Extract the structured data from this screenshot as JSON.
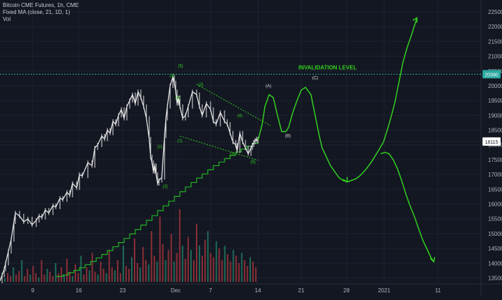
{
  "legend": {
    "symbol_line": "Bitcoin CME Futures, 1h, CME",
    "ma_line": "Fixed MA (close, 21, 1D, 1)",
    "vol_line": "Vol"
  },
  "annotations": {
    "invalidation_label": "INVALIDATION LEVEL"
  },
  "price_tags": {
    "invalidation": "20390",
    "last": "18115"
  },
  "colors": {
    "background": "#131722",
    "candles": "#e6e6e6",
    "wave_green": "#32d11f",
    "ma_green": "#22b422",
    "invalidation_line": "#2aa8a0",
    "volume_red": "#8c2f36",
    "volume_green": "#1f6b58",
    "axis_text": "#b2b5be",
    "grid": "#1e2230"
  },
  "chart_data": {
    "type": "line",
    "y_axis": {
      "range": [
        13300,
        22900
      ],
      "ticks": [
        "22500",
        "22000",
        "21500",
        "21000",
        "20500",
        "20000",
        "19500",
        "19000",
        "18500",
        "18000",
        "17500",
        "17000",
        "16500",
        "16000",
        "15500",
        "15000",
        "14500",
        "14000",
        "13500"
      ]
    },
    "x_axis": {
      "ticks": [
        "9",
        "16",
        "23",
        "Dec",
        "7",
        "14",
        "21",
        "28",
        "2021",
        "11"
      ]
    },
    "price_series": {
      "name": "",
      "x": [
        0,
        3,
        6,
        8,
        12,
        16,
        20,
        22,
        28,
        34,
        40,
        46,
        52,
        56,
        60,
        65,
        70,
        76,
        80,
        86,
        90,
        96,
        100,
        104,
        110,
        114,
        118,
        126,
        132,
        136,
        140,
        146,
        150,
        154,
        158,
        162,
        166,
        170,
        174,
        178,
        182,
        186,
        190,
        194,
        198,
        202,
        206,
        210,
        214,
        216,
        218,
        220,
        222,
        224,
        226,
        228,
        232,
        236,
        238,
        240,
        244,
        248,
        250,
        252,
        254,
        256,
        258,
        262,
        266,
        270,
        276,
        282,
        286,
        290,
        296,
        302,
        306,
        310,
        316,
        322,
        326,
        330,
        334,
        338,
        340,
        344,
        348,
        352,
        356,
        360,
        362,
        364,
        366,
        368,
        370
      ],
      "y": [
        13400,
        13600,
        13800,
        14000,
        14400,
        14800,
        15400,
        15700,
        15600,
        15400,
        15500,
        15300,
        15450,
        15600,
        15550,
        15800,
        15700,
        15950,
        15900,
        16200,
        16150,
        16400,
        16300,
        16700,
        16550,
        17000,
        16950,
        17400,
        17300,
        17900,
        18000,
        18300,
        18200,
        18500,
        18400,
        18800,
        18700,
        19000,
        19200,
        18900,
        19300,
        19500,
        19700,
        19400,
        19800,
        19600,
        19300,
        18900,
        18200,
        17600,
        17400,
        17100,
        17300,
        17000,
        16700,
        16800,
        16900,
        18300,
        18900,
        19300,
        20000,
        20300,
        20100,
        19800,
        19400,
        19600,
        19300,
        18900,
        19000,
        19300,
        19800,
        19700,
        19300,
        19000,
        19400,
        19200,
        18800,
        18700,
        19100,
        18800,
        18700,
        18400,
        18100,
        18000,
        17800,
        18400,
        18100,
        17900,
        17700,
        17900,
        18000,
        18100,
        18150,
        18200,
        18115
      ]
    },
    "volume_levels": [
      0.05,
      0.12,
      0.08,
      0.2,
      0.1,
      0.15,
      0.3,
      0.08,
      0.18,
      0.1,
      0.22,
      0.12,
      0.06,
      0.3,
      0.1,
      0.18,
      0.14,
      0.08,
      0.26,
      0.12,
      0.2,
      0.1,
      0.32,
      0.14,
      0.08,
      0.24,
      0.12,
      0.36,
      0.1,
      0.2,
      0.16,
      0.4,
      0.14,
      0.1,
      0.28,
      0.18,
      0.12,
      0.44,
      0.2,
      0.16,
      0.3,
      0.12,
      0.5,
      0.22,
      0.18,
      0.34,
      0.6,
      0.26,
      0.2,
      0.48,
      0.3,
      0.24,
      0.7,
      0.36,
      0.28,
      0.9,
      0.52,
      0.3,
      0.44,
      0.66,
      0.28,
      0.4,
      1.0,
      0.5,
      0.32,
      0.62,
      0.44,
      0.3,
      0.8,
      0.5,
      0.36,
      0.58,
      0.7,
      0.4,
      0.34,
      0.56,
      0.46,
      0.3,
      0.5,
      0.38,
      0.28,
      0.44,
      0.36,
      0.26,
      0.4,
      0.3,
      0.22,
      0.34,
      0.28,
      0.2
    ],
    "moving_average_steps": {
      "name": "Fixed MA (close, 21, 1D, 1)",
      "x": [
        80,
        90,
        98,
        106,
        114,
        122,
        130,
        138,
        146,
        154,
        162,
        170,
        178,
        186,
        194,
        202,
        210,
        218,
        226,
        234,
        242,
        250,
        258,
        266,
        274,
        282,
        290,
        298,
        306,
        314,
        322,
        330,
        338,
        346,
        354,
        362,
        370
      ],
      "y": [
        13550,
        13600,
        13680,
        13760,
        13850,
        13950,
        14060,
        14180,
        14300,
        14430,
        14560,
        14700,
        14840,
        14990,
        15140,
        15290,
        15450,
        15610,
        15780,
        15940,
        16100,
        16260,
        16420,
        16580,
        16730,
        16880,
        17020,
        17160,
        17300,
        17420,
        17540,
        17650,
        17760,
        17860,
        17960,
        18050,
        18115
      ]
    },
    "invalidation_level": 20390,
    "projected_path": {
      "x": [
        370,
        376,
        380,
        386,
        392,
        398,
        404,
        410,
        414,
        420,
        426,
        432,
        438,
        446,
        452,
        458,
        462,
        468,
        474,
        480,
        486,
        492,
        498,
        504,
        510,
        516,
        524,
        532,
        540,
        550,
        558,
        566,
        572,
        578,
        584,
        590,
        594,
        598
      ],
      "y": [
        18150,
        18700,
        19300,
        19700,
        19600,
        19000,
        18450,
        18450,
        18600,
        19100,
        19500,
        19850,
        19950,
        19700,
        19000,
        18300,
        17900,
        17600,
        17300,
        17100,
        16900,
        16800,
        16750,
        16800,
        16850,
        16950,
        17150,
        17400,
        17700,
        18100,
        18700,
        19400,
        20100,
        20800,
        21300,
        21700,
        22000,
        22300
      ]
    },
    "alternate_path": {
      "x": [
        546,
        552,
        558,
        564,
        570,
        576,
        582,
        588,
        594,
        600,
        606,
        612,
        618,
        622
      ],
      "y": [
        17700,
        17750,
        17700,
        17500,
        17200,
        16800,
        16350,
        15950,
        15600,
        15200,
        14800,
        14500,
        14200,
        14050
      ]
    },
    "wave_labels": [
      {
        "text": "(1)",
        "x": 229,
        "y": 17900
      },
      {
        "text": "(2)",
        "x": 237,
        "y": 16550
      },
      {
        "text": "(3)",
        "x": 247,
        "y": 20300
      },
      {
        "text": "(4)",
        "x": 255,
        "y": 19550
      },
      {
        "text": "(5)",
        "x": 259,
        "y": 20620
      },
      {
        "text": "(1)",
        "x": 258,
        "y": 18100
      },
      {
        "text": "(2)",
        "x": 288,
        "y": 20000
      },
      {
        "text": "(3)",
        "x": 333,
        "y": 17650
      },
      {
        "text": "(4)",
        "x": 344,
        "y": 18950
      },
      {
        "text": "(5)",
        "x": 363,
        "y": 17380
      },
      {
        "text": "(A)",
        "x": 385,
        "y": 19950
      },
      {
        "text": "(B)",
        "x": 413,
        "y": 18270
      },
      {
        "text": "(C)",
        "x": 452,
        "y": 20220
      }
    ],
    "trendlines": [
      {
        "x": [
          282,
          388
        ],
        "y": [
          20050,
          18650
        ]
      },
      {
        "x": [
          258,
          370
        ],
        "y": [
          18300,
          17480
        ]
      }
    ]
  }
}
